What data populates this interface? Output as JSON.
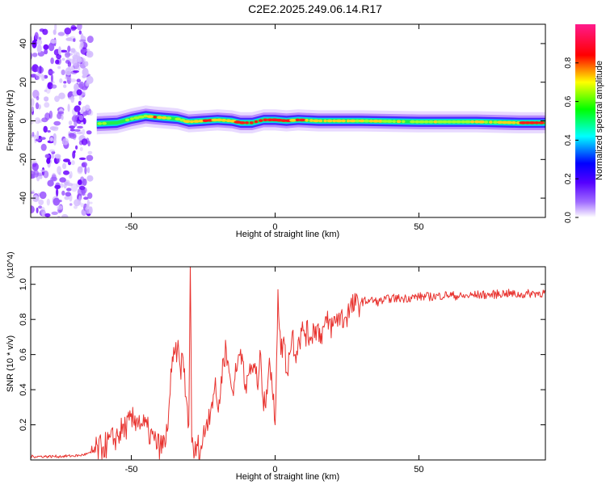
{
  "title": "C2E2.2025.249.06.14.R17",
  "chart_data": [
    {
      "type": "heatmap",
      "xlabel": "Height of straight line (km)",
      "ylabel": "Frequency (Hz)",
      "xlim": [
        -85,
        94
      ],
      "ylim": [
        -50,
        50
      ],
      "xticks": [
        -50,
        0,
        50
      ],
      "yticks": [
        -40,
        -20,
        0,
        20,
        40
      ],
      "colorbar": {
        "label": "Normalized spectral amplitude",
        "range": [
          0.0,
          1.0
        ],
        "ticks": [
          0.0,
          0.2,
          0.4,
          0.6,
          0.8
        ],
        "colors": [
          "#ffffff",
          "#7f00ff",
          "#0000ff",
          "#00ffff",
          "#00ff00",
          "#ffff00",
          "#ff0000",
          "#ff0080"
        ]
      },
      "ridge": {
        "x": [
          -62,
          -55,
          -50,
          -45,
          -42,
          -38,
          -34,
          -30,
          -25,
          -20,
          -15,
          -12,
          -8,
          -4,
          0,
          4,
          8,
          15,
          30,
          50,
          70,
          85,
          94
        ],
        "freq": [
          -1.5,
          -1,
          1,
          2.5,
          2,
          1.5,
          1,
          -0.5,
          0,
          0.5,
          0,
          -1,
          -1,
          0.5,
          0.5,
          0,
          0.5,
          0,
          0,
          -0.5,
          -0.5,
          -1,
          -1
        ],
        "amplitude": [
          0.7,
          0.5,
          0.6,
          0.75,
          0.9,
          0.7,
          0.6,
          0.7,
          0.85,
          0.8,
          0.75,
          0.95,
          0.9,
          0.95,
          0.95,
          0.9,
          0.85,
          0.8,
          0.75,
          0.65,
          0.7,
          0.85,
          1.0
        ]
      },
      "noise_region": {
        "x_from": -85,
        "x_to": -64
      }
    },
    {
      "type": "line",
      "xlabel": "Height of straight line (km)",
      "ylabel": "SNR (10 * v/v)",
      "y_multiplier": "(x10^4)",
      "xlim": [
        -85,
        94
      ],
      "ylim": [
        0.0,
        1.1
      ],
      "xticks": [
        -50,
        0,
        50
      ],
      "yticks": [
        0.2,
        0.4,
        0.6,
        0.8,
        1.0
      ],
      "series": [
        {
          "name": "SNR",
          "color": "#e8322e",
          "x": [
            -85,
            -75,
            -68,
            -64,
            -60,
            -56,
            -52,
            -48,
            -46,
            -44,
            -42,
            -40,
            -38,
            -37,
            -36,
            -35,
            -34,
            -33,
            -32,
            -31,
            -30,
            -29.5,
            -29,
            -28,
            -27,
            -26,
            -24,
            -22,
            -21,
            -20,
            -19,
            -18,
            -17,
            -16,
            -15,
            -14,
            -13,
            -12,
            -11,
            -10,
            -9,
            -8,
            -7,
            -6,
            -5,
            -4,
            -3,
            -2,
            -1,
            0,
            1,
            2,
            3,
            4,
            5,
            6,
            7,
            8,
            10,
            12,
            14,
            16,
            18,
            20,
            22,
            24,
            26,
            28,
            30,
            33,
            36,
            40,
            45,
            50,
            55,
            60,
            65,
            70,
            75,
            80,
            85,
            90,
            94
          ],
          "y": [
            0.02,
            0.02,
            0.025,
            0.04,
            0.07,
            0.12,
            0.19,
            0.24,
            0.2,
            0.16,
            0.11,
            0.07,
            0.1,
            0.28,
            0.5,
            0.6,
            0.63,
            0.52,
            0.58,
            0.36,
            0.2,
            1.12,
            0.1,
            0.03,
            0.08,
            0.05,
            0.2,
            0.33,
            0.42,
            0.3,
            0.38,
            0.58,
            0.63,
            0.5,
            0.4,
            0.46,
            0.55,
            0.63,
            0.56,
            0.38,
            0.5,
            0.52,
            0.55,
            0.4,
            0.6,
            0.28,
            0.4,
            0.58,
            0.4,
            0.2,
            0.97,
            0.6,
            0.7,
            0.5,
            0.6,
            0.73,
            0.6,
            0.68,
            0.74,
            0.7,
            0.76,
            0.72,
            0.78,
            0.76,
            0.82,
            0.8,
            0.86,
            0.88,
            0.9,
            0.91,
            0.9,
            0.92,
            0.92,
            0.93,
            0.93,
            0.94,
            0.93,
            0.94,
            0.94,
            0.95,
            0.94,
            0.95,
            0.95
          ]
        }
      ]
    }
  ]
}
